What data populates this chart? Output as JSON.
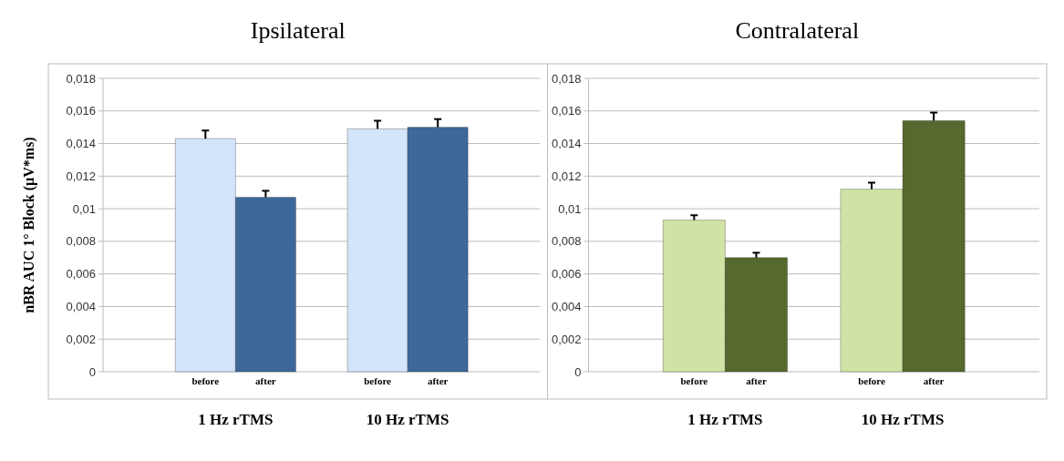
{
  "chart_data": [
    {
      "type": "bar",
      "title": "Ipsilateral",
      "ylabel": "nBR AUC 1° Block (µV*ms)",
      "categories": [
        "1 Hz rTMS",
        "10 Hz rTMS"
      ],
      "series": [
        {
          "name": "before",
          "color": "#d3e5fa",
          "values": [
            0.0143,
            0.0149
          ],
          "errors": [
            0.0005,
            0.0005
          ]
        },
        {
          "name": "after",
          "color": "#3e689a",
          "values": [
            0.0107,
            0.015
          ],
          "errors": [
            0.0004,
            0.0005
          ]
        }
      ],
      "ylim": [
        0,
        0.018
      ],
      "yticks": [
        0,
        {
          "value": 0.002,
          "label": "0,002"
        },
        {
          "value": 0.004,
          "label": "0,004"
        },
        {
          "value": 0.006,
          "label": "0,006"
        },
        {
          "value": 0.008,
          "label": "0,008"
        },
        {
          "value": 0.01,
          "label": "0,01"
        },
        {
          "value": 0.012,
          "label": "0,012"
        },
        {
          "value": 0.014,
          "label": "0,014"
        },
        {
          "value": 0.016,
          "label": "0,016"
        },
        {
          "value": 0.018,
          "label": "0,018"
        }
      ],
      "grid": "y"
    },
    {
      "type": "bar",
      "title": "Contralateral",
      "categories": [
        "1 Hz rTMS",
        "10 Hz rTMS"
      ],
      "series": [
        {
          "name": "before",
          "color": "#d1e2a5",
          "values": [
            0.0093,
            0.0112
          ],
          "errors": [
            0.0003,
            0.0004
          ]
        },
        {
          "name": "after",
          "color": "#56692e",
          "values": [
            0.007,
            0.0154
          ],
          "errors": [
            0.0003,
            0.0005
          ]
        }
      ],
      "ylim": [
        0,
        0.018
      ],
      "yticks": [
        0,
        {
          "value": 0.002,
          "label": "0,002"
        },
        {
          "value": 0.004,
          "label": "0,004"
        },
        {
          "value": 0.006,
          "label": "0,006"
        },
        {
          "value": 0.008,
          "label": "0,008"
        },
        {
          "value": 0.01,
          "label": "0,01"
        },
        {
          "value": 0.012,
          "label": "0,012"
        },
        {
          "value": 0.014,
          "label": "0,014"
        },
        {
          "value": 0.016,
          "label": "0,016"
        },
        {
          "value": 0.018,
          "label": "0,018"
        }
      ],
      "grid": "y"
    }
  ]
}
